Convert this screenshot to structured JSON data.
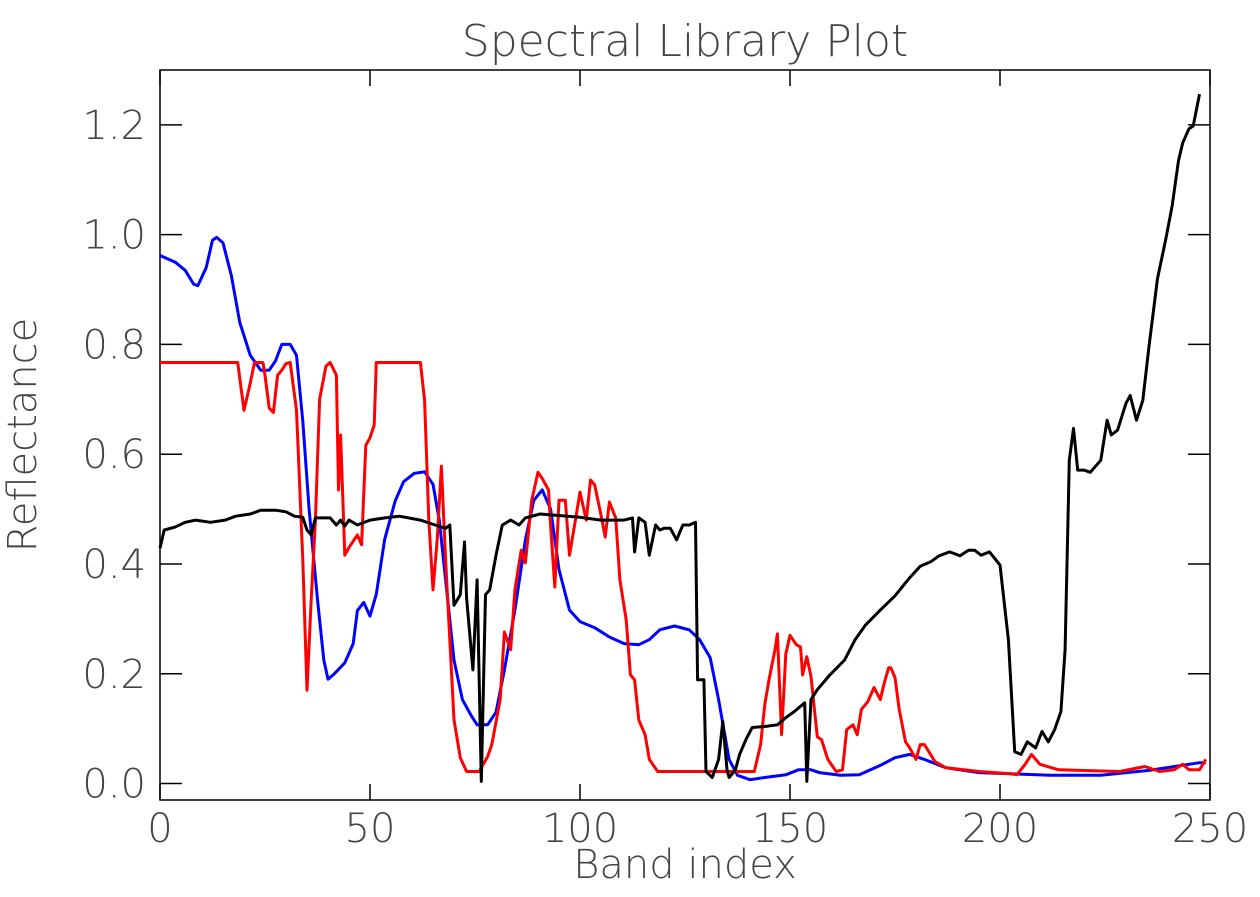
{
  "chart_data": {
    "type": "line",
    "title": "Spectral Library Plot",
    "x_label": "Band index",
    "y_label": "Reflectance",
    "xlim": [
      0,
      250
    ],
    "xticks": [
      0,
      50,
      100,
      150,
      200,
      250
    ],
    "ylim": [
      -0.03,
      1.3
    ],
    "yticks": [
      {
        "value": 0,
        "label": "0.0"
      },
      {
        "value": 0.2,
        "label": "0.2"
      },
      {
        "value": 0.4,
        "label": "0.4"
      },
      {
        "value": 0.6,
        "label": "0.6"
      },
      {
        "value": 0.8,
        "label": "0.8"
      },
      {
        "value": 1.0,
        "label": "1.0"
      },
      {
        "value": 1.2,
        "label": "1.2"
      }
    ],
    "grid": false,
    "series": [
      {
        "color": "#0000ff",
        "x": [
          0,
          3.6,
          6,
          8,
          9,
          11,
          12.5,
          13.5,
          15,
          17,
          19,
          21.5,
          24,
          26,
          27.5,
          29,
          31,
          32.5,
          34,
          35.5,
          37.5,
          39,
          40,
          41.5,
          44,
          46,
          47,
          48.5,
          50,
          51.5,
          53.5,
          56,
          58,
          60.5,
          63,
          65,
          66.5,
          68.5,
          70,
          72,
          74,
          75.5,
          78,
          80,
          82,
          84.5,
          87,
          89,
          91,
          93,
          95,
          97.5,
          100,
          103.5,
          107,
          110.5,
          114,
          116.5,
          119,
          122.5,
          126,
          128.5,
          131,
          133,
          135.5,
          137.5,
          140.5,
          144,
          149,
          152,
          155,
          157,
          162,
          166.5,
          171.5,
          175,
          178.5,
          182,
          187,
          195,
          212,
          224,
          235.5,
          247.5,
          249
        ],
        "values": [
          0.962,
          0.95,
          0.935,
          0.91,
          0.907,
          0.94,
          0.99,
          0.995,
          0.985,
          0.925,
          0.84,
          0.78,
          0.753,
          0.753,
          0.77,
          0.8,
          0.8,
          0.78,
          0.66,
          0.5,
          0.335,
          0.225,
          0.19,
          0.2,
          0.22,
          0.255,
          0.315,
          0.33,
          0.305,
          0.345,
          0.445,
          0.515,
          0.55,
          0.565,
          0.568,
          0.545,
          0.48,
          0.335,
          0.225,
          0.153,
          0.125,
          0.107,
          0.107,
          0.13,
          0.207,
          0.316,
          0.444,
          0.516,
          0.535,
          0.5,
          0.39,
          0.316,
          0.295,
          0.284,
          0.267,
          0.255,
          0.253,
          0.262,
          0.28,
          0.287,
          0.28,
          0.262,
          0.229,
          0.153,
          0.044,
          0.015,
          0.007,
          0.011,
          0.016,
          0.025,
          0.025,
          0.02,
          0.015,
          0.016,
          0.033,
          0.047,
          0.053,
          0.044,
          0.029,
          0.02,
          0.015,
          0.015,
          0.024,
          0.038,
          0.038
        ]
      },
      {
        "color": "#ff0000",
        "x": [
          0,
          18.5,
          20,
          21.5,
          22.5,
          24.5,
          25,
          26,
          27,
          28,
          29,
          30,
          31,
          32.5,
          34,
          35,
          36,
          37,
          38,
          39.5,
          40.5,
          42,
          42.5,
          43,
          44,
          45,
          47,
          48,
          49,
          50,
          51,
          51.5,
          62,
          63,
          64,
          65,
          66,
          67,
          68,
          69,
          70,
          71.5,
          73,
          76,
          78,
          79,
          81,
          82,
          83.5,
          84.5,
          86,
          87,
          88.5,
          90,
          91,
          92.5,
          93,
          94,
          95,
          96.5,
          97.5,
          99,
          100,
          101.5,
          102.5,
          103.5,
          105,
          106,
          107,
          108.5,
          109.5,
          111,
          112,
          113,
          114,
          115.5,
          116.5,
          118.5,
          139.5,
          141.5,
          143,
          144,
          145,
          146.5,
          147,
          148,
          149,
          150,
          151.5,
          152.5,
          153,
          154,
          155,
          156.5,
          157.5,
          159,
          161,
          162.5,
          163.5,
          165,
          166,
          167,
          168.5,
          170,
          171.5,
          172.5,
          173.5,
          174,
          175,
          176,
          177.5,
          178.5,
          180,
          181,
          182,
          184.5,
          187,
          195,
          202.5,
          204,
          206,
          207.5,
          209.5,
          214,
          228.5,
          234.5,
          238,
          241.5,
          243.5,
          245,
          247.5,
          249
        ],
        "values": [
          0.767,
          0.767,
          0.68,
          0.73,
          0.767,
          0.767,
          0.744,
          0.684,
          0.676,
          0.744,
          0.753,
          0.765,
          0.767,
          0.68,
          0.407,
          0.17,
          0.335,
          0.48,
          0.7,
          0.76,
          0.767,
          0.744,
          0.535,
          0.635,
          0.416,
          0.43,
          0.453,
          0.435,
          0.616,
          0.63,
          0.653,
          0.767,
          0.767,
          0.698,
          0.48,
          0.353,
          0.444,
          0.578,
          0.407,
          0.262,
          0.116,
          0.047,
          0.022,
          0.022,
          0.049,
          0.071,
          0.153,
          0.276,
          0.244,
          0.353,
          0.425,
          0.402,
          0.516,
          0.567,
          0.556,
          0.535,
          0.47,
          0.358,
          0.516,
          0.516,
          0.416,
          0.484,
          0.531,
          0.48,
          0.553,
          0.544,
          0.489,
          0.449,
          0.513,
          0.484,
          0.371,
          0.298,
          0.198,
          0.189,
          0.116,
          0.089,
          0.044,
          0.022,
          0.022,
          0.022,
          0.071,
          0.144,
          0.189,
          0.247,
          0.273,
          0.089,
          0.236,
          0.27,
          0.253,
          0.249,
          0.198,
          0.231,
          0.195,
          0.085,
          0.08,
          0.044,
          0.022,
          0.025,
          0.098,
          0.107,
          0.089,
          0.135,
          0.149,
          0.175,
          0.153,
          0.185,
          0.211,
          0.211,
          0.193,
          0.135,
          0.076,
          0.065,
          0.044,
          0.071,
          0.071,
          0.04,
          0.029,
          0.022,
          0.018,
          0.016,
          0.035,
          0.053,
          0.035,
          0.025,
          0.022,
          0.031,
          0.022,
          0.025,
          0.035,
          0.025,
          0.025,
          0.044
        ]
      },
      {
        "color": "#000000",
        "x": [
          0,
          1,
          3.5,
          6,
          8.5,
          12,
          15.5,
          18,
          21.5,
          24,
          27.5,
          30,
          32,
          34,
          35,
          36,
          37,
          40.5,
          42,
          43,
          44,
          45,
          47,
          50,
          53.5,
          57,
          62,
          65.5,
          68,
          69,
          70,
          71.5,
          72.5,
          73,
          74.5,
          75.5,
          76.5,
          77.5,
          78.5,
          80,
          81.5,
          83.5,
          85.5,
          87,
          90.5,
          100,
          105,
          110.5,
          112.5,
          113,
          114,
          115.5,
          116.5,
          118,
          119,
          120,
          121.5,
          123,
          124.5,
          126,
          127.5,
          128,
          129.5,
          130,
          131.5,
          133,
          134,
          135,
          135.5,
          137,
          138,
          139.5,
          141,
          144,
          147,
          149,
          151,
          153.5,
          154,
          155,
          156.5,
          159.5,
          163,
          165.5,
          168,
          171.5,
          175,
          178.5,
          181,
          183.5,
          185.5,
          188,
          190.5,
          192.5,
          194,
          195.5,
          197.5,
          200,
          202,
          203.5,
          205,
          206.5,
          208.5,
          210,
          211.5,
          213,
          214.5,
          215.5,
          216.5,
          217.5,
          218.5,
          220,
          221.5,
          224,
          225.5,
          226.5,
          228,
          230,
          231,
          232.5,
          234,
          235.5,
          237.5,
          239.5,
          241,
          242.5,
          243.5,
          245,
          246,
          247.5
        ],
        "values": [
          0.429,
          0.462,
          0.467,
          0.476,
          0.48,
          0.476,
          0.48,
          0.487,
          0.491,
          0.498,
          0.498,
          0.495,
          0.487,
          0.485,
          0.462,
          0.453,
          0.484,
          0.484,
          0.471,
          0.48,
          0.469,
          0.48,
          0.471,
          0.48,
          0.484,
          0.487,
          0.48,
          0.471,
          0.465,
          0.471,
          0.325,
          0.344,
          0.44,
          0.338,
          0.207,
          0.371,
          0.004,
          0.344,
          0.353,
          0.416,
          0.471,
          0.48,
          0.471,
          0.484,
          0.491,
          0.485,
          0.48,
          0.48,
          0.484,
          0.422,
          0.484,
          0.476,
          0.416,
          0.471,
          0.462,
          0.465,
          0.465,
          0.444,
          0.471,
          0.471,
          0.476,
          0.189,
          0.189,
          0.022,
          0.011,
          0.044,
          0.113,
          0.025,
          0.011,
          0.025,
          0.053,
          0.08,
          0.102,
          0.104,
          0.107,
          0.12,
          0.131,
          0.147,
          0.004,
          0.153,
          0.171,
          0.198,
          0.225,
          0.262,
          0.289,
          0.316,
          0.342,
          0.375,
          0.396,
          0.404,
          0.415,
          0.422,
          0.415,
          0.425,
          0.425,
          0.416,
          0.422,
          0.398,
          0.262,
          0.058,
          0.053,
          0.076,
          0.065,
          0.095,
          0.076,
          0.098,
          0.131,
          0.244,
          0.589,
          0.647,
          0.571,
          0.571,
          0.567,
          0.589,
          0.662,
          0.635,
          0.644,
          0.693,
          0.707,
          0.662,
          0.698,
          0.798,
          0.92,
          0.993,
          1.053,
          1.135,
          1.167,
          1.193,
          1.198,
          1.256
        ]
      }
    ]
  }
}
